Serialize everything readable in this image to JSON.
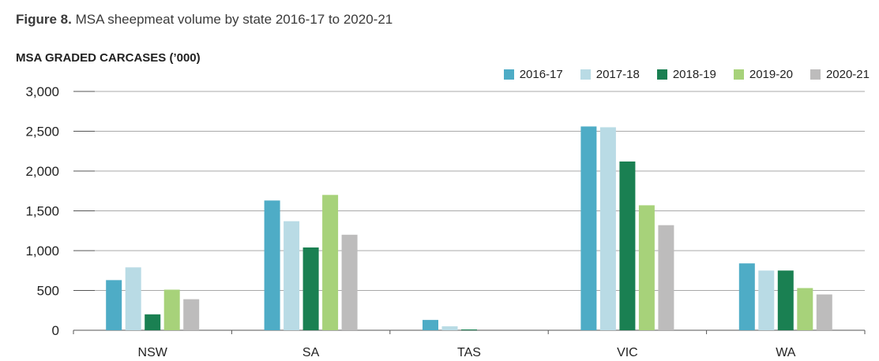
{
  "figure": {
    "label": "Figure 8.",
    "title": "MSA sheepmeat volume by state 2016-17 to 2020-21"
  },
  "chart_data": {
    "type": "bar",
    "ylabel": "MSA GRADED CARCASES (’000)",
    "xlabel": "",
    "categories": [
      "NSW",
      "SA",
      "TAS",
      "VIC",
      "WA"
    ],
    "ylim": [
      0,
      3000
    ],
    "yticks": [
      0,
      500,
      1000,
      1500,
      2000,
      2500,
      3000
    ],
    "ytick_labels": [
      "0",
      "500",
      "1,000",
      "1,500",
      "2,000",
      "2,500",
      "3,000"
    ],
    "grid": true,
    "legend_position": "top-right",
    "series": [
      {
        "name": "2016-17",
        "color": "#4eacc6",
        "values": [
          630,
          1630,
          130,
          2560,
          840
        ]
      },
      {
        "name": "2017-18",
        "color": "#b9dbe5",
        "values": [
          790,
          1370,
          50,
          2550,
          750
        ]
      },
      {
        "name": "2018-19",
        "color": "#1a8052",
        "values": [
          200,
          1040,
          10,
          2120,
          750
        ]
      },
      {
        "name": "2019-20",
        "color": "#a7d27a",
        "values": [
          510,
          1700,
          0,
          1570,
          530
        ]
      },
      {
        "name": "2020-21",
        "color": "#bdbcbc",
        "values": [
          390,
          1200,
          0,
          1320,
          450
        ]
      }
    ]
  }
}
